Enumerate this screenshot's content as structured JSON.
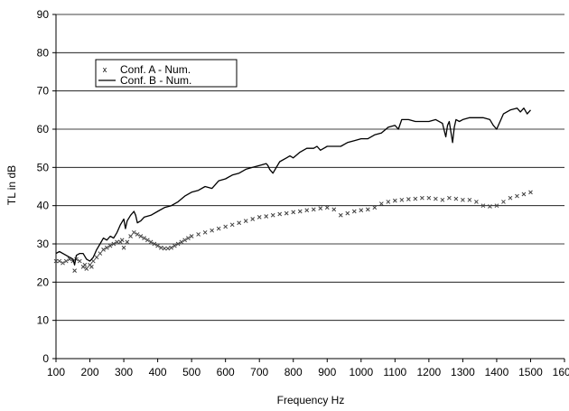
{
  "chart_data": {
    "type": "line",
    "title": "",
    "xlabel": "Frequency Hz",
    "ylabel": "TL in dB",
    "xlim": [
      100,
      1600
    ],
    "ylim": [
      0,
      90
    ],
    "xticks": [
      100,
      200,
      300,
      400,
      500,
      600,
      700,
      800,
      900,
      1000,
      1100,
      1200,
      1300,
      1400,
      1500,
      1600
    ],
    "yticks": [
      0,
      10,
      20,
      30,
      40,
      50,
      60,
      70,
      80,
      90
    ],
    "grid": "horizontal",
    "legend_position": "top-left",
    "series": [
      {
        "name": "Conf. A - Num.",
        "style": "markers",
        "marker": "x",
        "color": "#404040",
        "x": [
          100,
          110,
          120,
          130,
          140,
          150,
          155,
          160,
          170,
          180,
          185,
          190,
          200,
          205,
          210,
          220,
          230,
          240,
          250,
          260,
          270,
          280,
          290,
          295,
          300,
          310,
          320,
          330,
          340,
          350,
          360,
          370,
          380,
          390,
          400,
          410,
          420,
          430,
          440,
          450,
          460,
          470,
          480,
          490,
          500,
          520,
          540,
          560,
          580,
          600,
          620,
          640,
          660,
          680,
          700,
          720,
          740,
          760,
          780,
          800,
          820,
          840,
          860,
          880,
          900,
          920,
          940,
          960,
          980,
          1000,
          1020,
          1040,
          1060,
          1080,
          1100,
          1120,
          1140,
          1160,
          1180,
          1200,
          1220,
          1240,
          1260,
          1280,
          1300,
          1320,
          1340,
          1360,
          1380,
          1400,
          1420,
          1440,
          1460,
          1480,
          1500
        ],
        "y": [
          25.5,
          25.5,
          25.0,
          25.5,
          26.0,
          25.5,
          23.0,
          26.0,
          25.5,
          24.0,
          24.5,
          23.5,
          24.5,
          24.0,
          25.5,
          26.5,
          27.5,
          28.5,
          29.0,
          29.5,
          30.0,
          30.5,
          30.5,
          31.0,
          29.0,
          30.5,
          32.0,
          33.0,
          32.5,
          32.0,
          31.5,
          31.0,
          30.5,
          30.0,
          29.5,
          29.0,
          28.8,
          28.8,
          29.0,
          29.5,
          30.0,
          30.5,
          31.0,
          31.5,
          32.0,
          32.5,
          33.0,
          33.5,
          34.0,
          34.5,
          35.0,
          35.5,
          36.0,
          36.5,
          37.0,
          37.2,
          37.5,
          37.8,
          38.0,
          38.3,
          38.5,
          38.8,
          39.0,
          39.3,
          39.5,
          39.0,
          37.5,
          38.0,
          38.5,
          38.8,
          39.0,
          39.5,
          40.5,
          41.0,
          41.3,
          41.5,
          41.7,
          41.8,
          42.0,
          42.0,
          41.8,
          41.5,
          42.0,
          41.8,
          41.5,
          41.5,
          41.0,
          40.0,
          39.8,
          40.0,
          41.0,
          42.0,
          42.5,
          43.0,
          43.5
        ]
      },
      {
        "name": "Conf. B - Num.",
        "style": "line",
        "color": "#000000",
        "x": [
          100,
          110,
          120,
          130,
          140,
          150,
          155,
          160,
          170,
          180,
          190,
          200,
          210,
          220,
          230,
          240,
          250,
          260,
          270,
          280,
          290,
          300,
          305,
          310,
          320,
          330,
          335,
          340,
          350,
          360,
          380,
          400,
          420,
          440,
          460,
          480,
          500,
          520,
          540,
          560,
          570,
          580,
          600,
          620,
          640,
          660,
          680,
          700,
          720,
          725,
          730,
          740,
          760,
          780,
          790,
          800,
          820,
          840,
          860,
          870,
          880,
          890,
          900,
          920,
          940,
          960,
          980,
          1000,
          1020,
          1040,
          1060,
          1080,
          1100,
          1110,
          1120,
          1140,
          1160,
          1180,
          1200,
          1220,
          1240,
          1250,
          1255,
          1260,
          1270,
          1275,
          1280,
          1290,
          1300,
          1320,
          1340,
          1360,
          1380,
          1390,
          1400,
          1410,
          1420,
          1440,
          1460,
          1470,
          1480,
          1490,
          1500
        ],
        "y": [
          27.5,
          28.0,
          27.5,
          27.0,
          26.5,
          26.0,
          24.5,
          27.0,
          27.5,
          27.5,
          26.0,
          25.5,
          26.5,
          28.5,
          30.0,
          31.5,
          31.0,
          32.0,
          31.5,
          33.0,
          35.0,
          36.5,
          34.0,
          36.0,
          37.5,
          38.5,
          37.5,
          35.5,
          36.0,
          37.0,
          37.5,
          38.5,
          39.5,
          40.0,
          41.0,
          42.5,
          43.5,
          44.0,
          45.0,
          44.5,
          45.5,
          46.5,
          47.0,
          48.0,
          48.5,
          49.5,
          50.0,
          50.5,
          51.0,
          50.5,
          49.5,
          48.5,
          51.5,
          52.5,
          53.0,
          52.5,
          54.0,
          55.0,
          55.0,
          55.5,
          54.5,
          55.0,
          55.5,
          55.5,
          55.5,
          56.5,
          57.0,
          57.5,
          57.5,
          58.5,
          59.0,
          60.5,
          61.0,
          60.0,
          62.5,
          62.5,
          62.0,
          62.0,
          62.0,
          62.5,
          61.5,
          58.0,
          61.0,
          62.0,
          56.5,
          60.5,
          62.5,
          62.0,
          62.5,
          63.0,
          63.0,
          63.0,
          62.5,
          61.0,
          60.0,
          62.0,
          64.0,
          65.0,
          65.5,
          64.5,
          65.5,
          64.0,
          65.0
        ]
      }
    ]
  }
}
